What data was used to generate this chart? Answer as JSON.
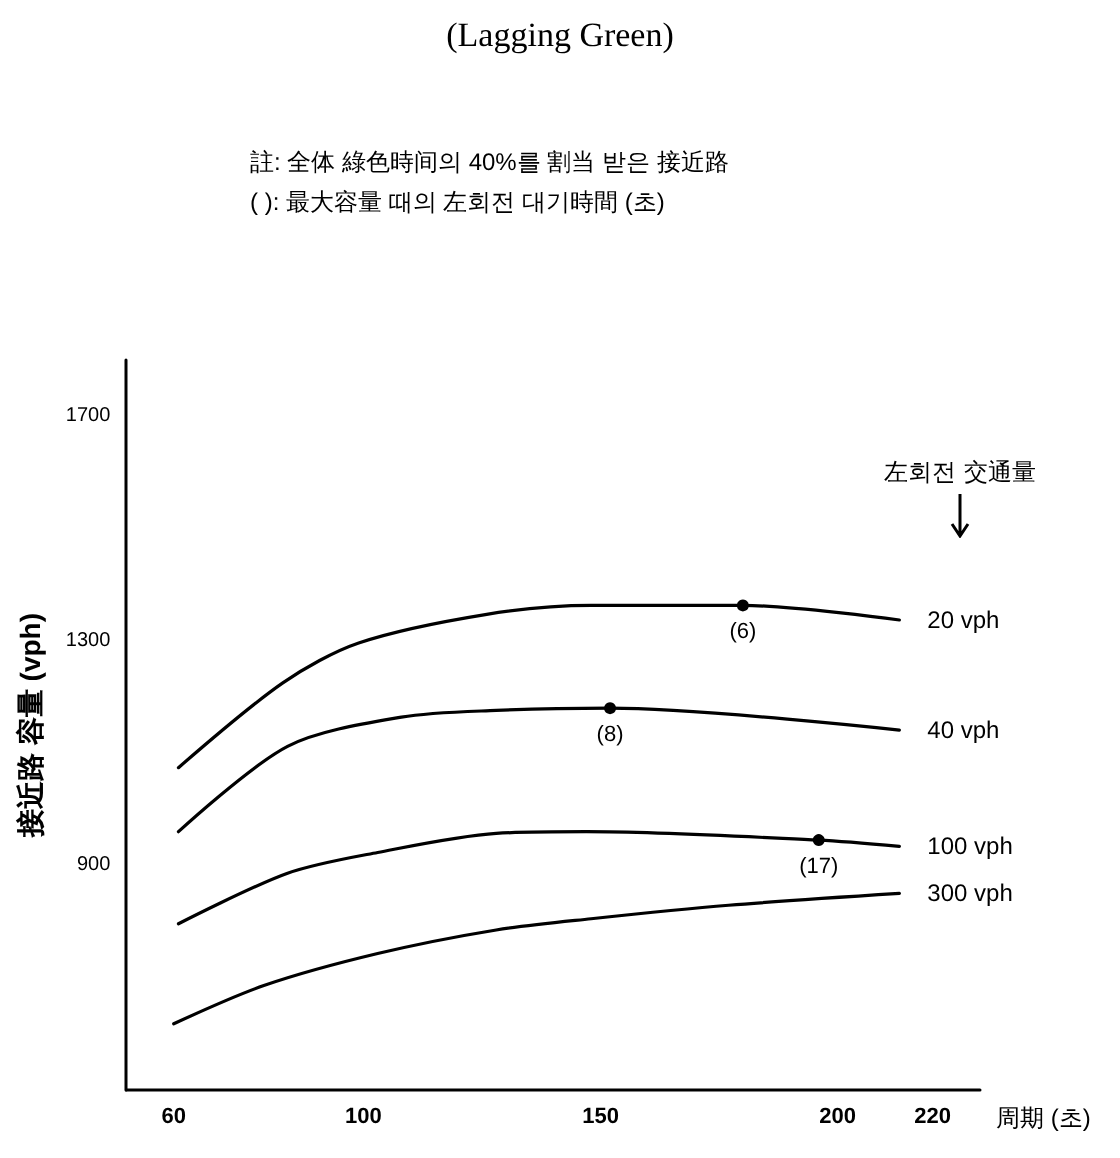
{
  "chart_data": {
    "type": "line",
    "title": "(Lagging Green)",
    "subtitle": "註: 全体 綠色時间의 40%를 割当 받은 接近路\n( ): 最大容量 때의 左회전 대기時間 (초)",
    "xlabel": "周期 (초)",
    "ylabel": "接近路 容量 (vph)",
    "legend_title": "左회전 交通量",
    "xlim": [
      50,
      230
    ],
    "xticks": [
      60,
      100,
      150,
      200,
      220
    ],
    "ylim": [
      500,
      1800
    ],
    "yticks": [
      900,
      1300,
      1700
    ],
    "grid": false,
    "legend": false,
    "marker": "none",
    "line_style": "solid",
    "series": [
      {
        "name": "20 vph",
        "color": "#000000",
        "x": [
          61,
          83,
          99,
          126,
          148,
          180,
          213
        ],
        "values": [
          1074,
          1225,
          1296,
          1347,
          1363,
          1363,
          1337
        ]
      },
      {
        "name": "40 vph",
        "color": "#000000",
        "x": [
          61,
          84,
          108,
          128,
          152,
          213
        ],
        "values": [
          960,
          1112,
          1164,
          1176,
          1180,
          1141
        ]
      },
      {
        "name": "100 vph",
        "color": "#000000",
        "x": [
          61,
          84,
          103,
          128,
          147,
          196,
          213
        ],
        "values": [
          796,
          886,
          923,
          957,
          960,
          945,
          934
        ]
      },
      {
        "name": "300 vph",
        "color": "#000000",
        "x": [
          60,
          79,
          103,
          128,
          148,
          177,
          213
        ],
        "values": [
          618,
          686,
          743,
          785,
          805,
          829,
          850
        ]
      }
    ],
    "annotations": [
      {
        "text": "(6)",
        "x": 180,
        "y": 1363
      },
      {
        "text": "(8)",
        "x": 152,
        "y": 1180
      },
      {
        "text": "(17)",
        "x": 196,
        "y": 945
      }
    ]
  }
}
